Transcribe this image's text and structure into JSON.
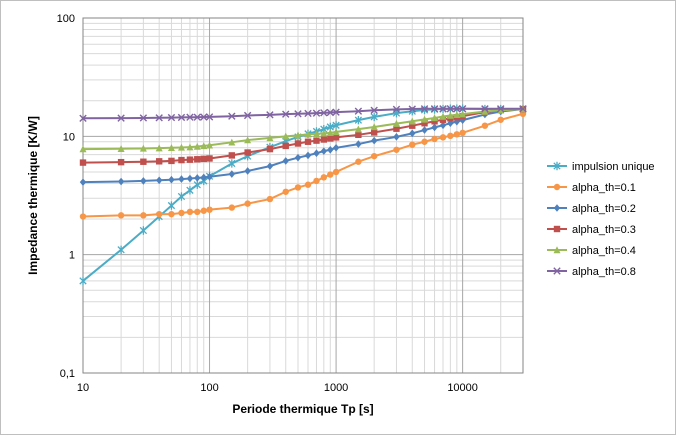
{
  "chart_data": {
    "type": "line",
    "title": "",
    "xlabel": "Periode thermique Tp [s]",
    "ylabel": "Impedance thermique [K/W]",
    "xscale": "log",
    "yscale": "log",
    "xlim": [
      10,
      30000
    ],
    "ylim": [
      0.1,
      100
    ],
    "x_ticks": [
      {
        "value": 10,
        "label": "10"
      },
      {
        "value": 100,
        "label": "100"
      },
      {
        "value": 1000,
        "label": "1000"
      },
      {
        "value": 10000,
        "label": "10000"
      }
    ],
    "y_ticks": [
      {
        "value": 0.1,
        "label": "0,1"
      },
      {
        "value": 1,
        "label": "1"
      },
      {
        "value": 10,
        "label": "10"
      },
      {
        "value": 100,
        "label": "100"
      }
    ],
    "grid": true,
    "legend_position": "right",
    "series": [
      {
        "name": "impulsion unique",
        "color": "#4bacc6",
        "marker": "star",
        "x": [
          10,
          20,
          30,
          40,
          50,
          60,
          70,
          80,
          90,
          100,
          150,
          200,
          300,
          400,
          500,
          600,
          700,
          800,
          900,
          1000,
          1500,
          2000,
          3000,
          4000,
          5000,
          6000,
          7000,
          8000,
          9000,
          10000,
          15000,
          20000,
          30000
        ],
        "y": [
          0.6,
          1.1,
          1.6,
          2.1,
          2.6,
          3.1,
          3.5,
          3.9,
          4.2,
          4.6,
          5.9,
          6.8,
          8.1,
          9.1,
          9.9,
          10.5,
          11.0,
          11.5,
          12.0,
          12.4,
          13.7,
          14.6,
          15.7,
          16.3,
          16.7,
          16.9,
          17.0,
          17.1,
          17.1,
          17.1,
          17.0,
          17.0,
          17.0
        ]
      },
      {
        "name": "alpha_th=0.1",
        "color": "#f79646",
        "marker": "circle",
        "x": [
          10,
          20,
          30,
          40,
          50,
          60,
          70,
          80,
          90,
          100,
          150,
          200,
          300,
          400,
          500,
          600,
          700,
          800,
          900,
          1000,
          1500,
          2000,
          3000,
          4000,
          5000,
          6000,
          7000,
          8000,
          9000,
          10000,
          15000,
          20000,
          30000
        ],
        "y": [
          2.1,
          2.15,
          2.15,
          2.2,
          2.2,
          2.25,
          2.3,
          2.3,
          2.35,
          2.4,
          2.5,
          2.7,
          2.95,
          3.4,
          3.7,
          3.9,
          4.2,
          4.5,
          4.75,
          5.0,
          6.1,
          6.8,
          7.7,
          8.5,
          9.0,
          9.5,
          9.8,
          10.1,
          10.4,
          10.7,
          12.3,
          13.8,
          15.5
        ]
      },
      {
        "name": "alpha_th=0.2",
        "color": "#4f81bd",
        "marker": "diamond",
        "x": [
          10,
          20,
          30,
          40,
          50,
          60,
          70,
          80,
          90,
          100,
          150,
          200,
          300,
          400,
          500,
          600,
          700,
          800,
          900,
          1000,
          1500,
          2000,
          3000,
          4000,
          5000,
          6000,
          7000,
          8000,
          9000,
          10000,
          15000,
          20000,
          30000
        ],
        "y": [
          4.1,
          4.15,
          4.2,
          4.25,
          4.3,
          4.35,
          4.4,
          4.45,
          4.5,
          4.55,
          4.8,
          5.1,
          5.6,
          6.2,
          6.6,
          6.9,
          7.2,
          7.5,
          7.7,
          8.0,
          8.6,
          9.2,
          9.9,
          10.6,
          11.3,
          11.9,
          12.4,
          12.9,
          13.3,
          13.7,
          15.3,
          16.2,
          17.0
        ]
      },
      {
        "name": "alpha_th=0.3",
        "color": "#c0504d",
        "marker": "square",
        "x": [
          10,
          20,
          30,
          40,
          50,
          60,
          70,
          80,
          90,
          100,
          150,
          200,
          300,
          400,
          500,
          600,
          700,
          800,
          900,
          1000,
          1500,
          2000,
          3000,
          4000,
          5000,
          6000,
          7000,
          8000,
          9000,
          10000,
          15000,
          20000,
          30000
        ],
        "y": [
          6.0,
          6.05,
          6.1,
          6.15,
          6.2,
          6.3,
          6.35,
          6.4,
          6.45,
          6.5,
          6.9,
          7.3,
          7.8,
          8.3,
          8.7,
          9.0,
          9.2,
          9.4,
          9.6,
          9.8,
          10.3,
          10.8,
          11.6,
          12.3,
          12.9,
          13.4,
          13.8,
          14.2,
          14.5,
          14.8,
          16.0,
          16.6,
          17.0
        ]
      },
      {
        "name": "alpha_th=0.4",
        "color": "#9bbb59",
        "marker": "triangle",
        "x": [
          10,
          20,
          30,
          40,
          50,
          60,
          70,
          80,
          90,
          100,
          150,
          200,
          300,
          400,
          500,
          600,
          700,
          800,
          900,
          1000,
          1500,
          2000,
          3000,
          4000,
          5000,
          6000,
          7000,
          8000,
          9000,
          10000,
          15000,
          20000,
          30000
        ],
        "y": [
          7.8,
          7.85,
          7.9,
          7.95,
          8.0,
          8.05,
          8.1,
          8.2,
          8.3,
          8.4,
          8.9,
          9.3,
          9.7,
          10.0,
          10.2,
          10.4,
          10.5,
          10.6,
          10.7,
          10.9,
          11.5,
          12.0,
          12.8,
          13.4,
          13.9,
          14.3,
          14.7,
          15.0,
          15.2,
          15.4,
          16.2,
          16.6,
          17.0
        ]
      },
      {
        "name": "alpha_th=0.8",
        "color": "#8064a2",
        "marker": "x",
        "x": [
          10,
          20,
          30,
          40,
          50,
          60,
          70,
          80,
          90,
          100,
          150,
          200,
          300,
          400,
          500,
          600,
          700,
          800,
          900,
          1000,
          1500,
          2000,
          3000,
          4000,
          5000,
          6000,
          7000,
          8000,
          9000,
          10000,
          15000,
          20000,
          30000
        ],
        "y": [
          14.2,
          14.25,
          14.3,
          14.35,
          14.4,
          14.45,
          14.5,
          14.5,
          14.55,
          14.6,
          14.8,
          15.0,
          15.2,
          15.4,
          15.5,
          15.6,
          15.7,
          15.8,
          15.9,
          16.0,
          16.3,
          16.6,
          16.9,
          17.0,
          17.1,
          17.1,
          17.1,
          17.1,
          17.1,
          17.1,
          17.1,
          17.1,
          17.1
        ]
      }
    ]
  }
}
